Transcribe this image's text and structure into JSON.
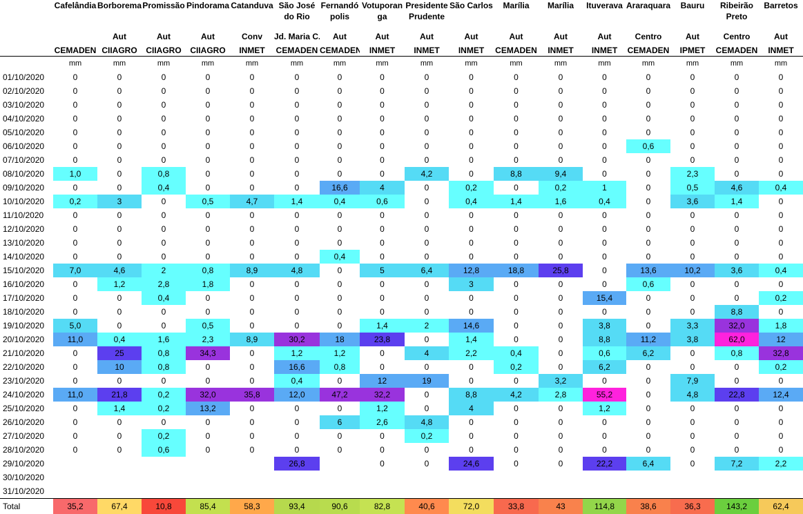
{
  "stations": [
    {
      "name": "Cafelândia",
      "type": "",
      "source": "CEMADEN",
      "unit": "mm"
    },
    {
      "name": "Borborema",
      "type": "Aut",
      "source": "CIIAGRO",
      "unit": "mm"
    },
    {
      "name": "Promissão",
      "type": "Aut",
      "source": "CIIAGRO",
      "unit": "mm"
    },
    {
      "name": "Pindorama",
      "type": "Aut",
      "source": "CIIAGRO",
      "unit": "mm"
    },
    {
      "name": "Catanduva",
      "type": "Conv",
      "source": "INMET",
      "unit": "mm"
    },
    {
      "name": "São José do Rio",
      "type": "Jd. Maria C.",
      "source": "CEMADEN",
      "unit": "mm"
    },
    {
      "name": "Fernandó polis",
      "type": "Aut",
      "source": "CEMADEN",
      "unit": "mm"
    },
    {
      "name": "Votuporan ga",
      "type": "Aut",
      "source": "INMET",
      "unit": "mm"
    },
    {
      "name": "Presidente Prudente",
      "type": "Aut",
      "source": "INMET",
      "unit": "mm"
    },
    {
      "name": "São Carlos",
      "type": "Aut",
      "source": "INMET",
      "unit": "mm"
    },
    {
      "name": "Marília",
      "type": "Aut",
      "source": "CEMADEN",
      "unit": "mm"
    },
    {
      "name": "Marília",
      "type": "Aut",
      "source": "INMET",
      "unit": "mm"
    },
    {
      "name": "Ituverava",
      "type": "Aut",
      "source": "INMET",
      "unit": "mm"
    },
    {
      "name": "Araraquara",
      "type": "Centro",
      "source": "CEMADEN",
      "unit": "mm"
    },
    {
      "name": "Bauru",
      "type": "Aut",
      "source": "IPMET",
      "unit": "mm"
    },
    {
      "name": "Ribeirão Preto",
      "type": "Centro",
      "source": "CEMADEN",
      "unit": "mm"
    },
    {
      "name": "Barretos",
      "type": "Aut",
      "source": "INMET",
      "unit": "mm"
    }
  ],
  "rows": [
    {
      "date": "01/10/2020",
      "values": [
        "0",
        "0",
        "0",
        "0",
        "0",
        "0",
        "0",
        "0",
        "0",
        "0",
        "0",
        "0",
        "0",
        "0",
        "0",
        "0",
        "0"
      ]
    },
    {
      "date": "02/10/2020",
      "values": [
        "0",
        "0",
        "0",
        "0",
        "0",
        "0",
        "0",
        "0",
        "0",
        "0",
        "0",
        "0",
        "0",
        "0",
        "0",
        "0",
        "0"
      ]
    },
    {
      "date": "03/10/2020",
      "values": [
        "0",
        "0",
        "0",
        "0",
        "0",
        "0",
        "0",
        "0",
        "0",
        "0",
        "0",
        "0",
        "0",
        "0",
        "0",
        "0",
        "0"
      ]
    },
    {
      "date": "04/10/2020",
      "values": [
        "0",
        "0",
        "0",
        "0",
        "0",
        "0",
        "0",
        "0",
        "0",
        "0",
        "0",
        "0",
        "0",
        "0",
        "0",
        "0",
        "0"
      ]
    },
    {
      "date": "05/10/2020",
      "values": [
        "0",
        "0",
        "0",
        "0",
        "0",
        "0",
        "0",
        "0",
        "0",
        "0",
        "0",
        "0",
        "0",
        "0",
        "0",
        "0",
        "0"
      ]
    },
    {
      "date": "06/10/2020",
      "values": [
        "0",
        "0",
        "0",
        "0",
        "0",
        "0",
        "0",
        "0",
        "0",
        "0",
        "0",
        "0",
        "0",
        "0,6",
        "0",
        "0",
        "0"
      ]
    },
    {
      "date": "07/10/2020",
      "values": [
        "0",
        "0",
        "0",
        "0",
        "0",
        "0",
        "0",
        "0",
        "0",
        "0",
        "0",
        "0",
        "0",
        "0",
        "0",
        "0",
        "0"
      ]
    },
    {
      "date": "08/10/2020",
      "values": [
        "1,0",
        "0",
        "0,8",
        "0",
        "0",
        "0",
        "0",
        "0",
        "4,2",
        "0",
        "8,8",
        "9,4",
        "0",
        "0",
        "2,3",
        "0",
        "0"
      ]
    },
    {
      "date": "09/10/2020",
      "values": [
        "0",
        "0",
        "0,4",
        "0",
        "0",
        "0",
        "16,6",
        "4",
        "0",
        "0,2",
        "0",
        "0,2",
        "1",
        "0",
        "0,5",
        "4,6",
        "0,4"
      ]
    },
    {
      "date": "10/10/2020",
      "values": [
        "0,2",
        "3",
        "0",
        "0,5",
        "4,7",
        "1,4",
        "0,4",
        "0,6",
        "0",
        "0,4",
        "1,4",
        "1,6",
        "0,4",
        "0",
        "3,6",
        "1,4",
        "0"
      ]
    },
    {
      "date": "11/10/2020",
      "values": [
        "0",
        "0",
        "0",
        "0",
        "0",
        "0",
        "0",
        "0",
        "0",
        "0",
        "0",
        "0",
        "0",
        "0",
        "0",
        "0",
        "0"
      ]
    },
    {
      "date": "12/10/2020",
      "values": [
        "0",
        "0",
        "0",
        "0",
        "0",
        "0",
        "0",
        "0",
        "0",
        "0",
        "0",
        "0",
        "0",
        "0",
        "0",
        "0",
        "0"
      ]
    },
    {
      "date": "13/10/2020",
      "values": [
        "0",
        "0",
        "0",
        "0",
        "0",
        "0",
        "0",
        "0",
        "0",
        "0",
        "0",
        "0",
        "0",
        "0",
        "0",
        "0",
        "0"
      ]
    },
    {
      "date": "14/10/2020",
      "values": [
        "0",
        "0",
        "0",
        "0",
        "0",
        "0",
        "0,4",
        "0",
        "0",
        "0",
        "0",
        "0",
        "0",
        "0",
        "0",
        "0",
        "0"
      ]
    },
    {
      "date": "15/10/2020",
      "values": [
        "7,0",
        "4,6",
        "2",
        "0,8",
        "8,9",
        "4,8",
        "0",
        "5",
        "6,4",
        "12,8",
        "18,8",
        "25,8",
        "0",
        "13,6",
        "10,2",
        "3,6",
        "0,4"
      ]
    },
    {
      "date": "16/10/2020",
      "values": [
        "0",
        "1,2",
        "2,8",
        "1,8",
        "0",
        "0",
        "0",
        "0",
        "0",
        "3",
        "0",
        "0",
        "0",
        "0,6",
        "0",
        "0",
        "0"
      ]
    },
    {
      "date": "17/10/2020",
      "values": [
        "0",
        "0",
        "0,4",
        "0",
        "0",
        "0",
        "0",
        "0",
        "0",
        "0",
        "0",
        "0",
        "15,4",
        "0",
        "0",
        "0",
        "0,2"
      ]
    },
    {
      "date": "18/10/2020",
      "values": [
        "0",
        "0",
        "0",
        "0",
        "0",
        "0",
        "0",
        "0",
        "0",
        "0",
        "0",
        "0",
        "0",
        "0",
        "0",
        "8,8",
        "0"
      ]
    },
    {
      "date": "19/10/2020",
      "values": [
        "5,0",
        "0",
        "0",
        "0,5",
        "0",
        "0",
        "0",
        "1,4",
        "2",
        "14,6",
        "0",
        "0",
        "3,8",
        "0",
        "3,3",
        "32,0",
        "1,8"
      ]
    },
    {
      "date": "20/10/2020",
      "values": [
        "11,0",
        "0,4",
        "1,6",
        "2,3",
        "8,9",
        "30,2",
        "18",
        "23,8",
        "0",
        "1,4",
        "0",
        "0",
        "8,8",
        "11,2",
        "3,8",
        "62,0",
        "12"
      ]
    },
    {
      "date": "21/10/2020",
      "values": [
        "0",
        "25",
        "0,8",
        "34,3",
        "0",
        "1,2",
        "1,2",
        "0",
        "4",
        "2,2",
        "0,4",
        "0",
        "0,6",
        "6,2",
        "0",
        "0,8",
        "32,8"
      ]
    },
    {
      "date": "22/10/2020",
      "values": [
        "0",
        "10",
        "0,8",
        "0",
        "0",
        "16,6",
        "0,8",
        "0",
        "0",
        "0",
        "0,2",
        "0",
        "6,2",
        "0",
        "0",
        "0",
        "0,2"
      ]
    },
    {
      "date": "23/10/2020",
      "values": [
        "0",
        "0",
        "0",
        "0",
        "0",
        "0,4",
        "0",
        "12",
        "19",
        "0",
        "0",
        "3,2",
        "0",
        "0",
        "7,9",
        "0",
        "0"
      ]
    },
    {
      "date": "24/10/2020",
      "values": [
        "11,0",
        "21,8",
        "0,2",
        "32,0",
        "35,8",
        "12,0",
        "47,2",
        "32,2",
        "0",
        "8,8",
        "4,2",
        "2,8",
        "55,2",
        "0",
        "4,8",
        "22,8",
        "12,4"
      ]
    },
    {
      "date": "25/10/2020",
      "values": [
        "0",
        "1,4",
        "0,2",
        "13,2",
        "0",
        "0",
        "0",
        "1,2",
        "0",
        "4",
        "0",
        "0",
        "1,2",
        "0",
        "0",
        "0",
        "0"
      ]
    },
    {
      "date": "26/10/2020",
      "values": [
        "0",
        "0",
        "0",
        "0",
        "0",
        "0",
        "6",
        "2,6",
        "4,8",
        "0",
        "0",
        "0",
        "0",
        "0",
        "0",
        "0",
        "0"
      ]
    },
    {
      "date": "27/10/2020",
      "values": [
        "0",
        "0",
        "0,2",
        "0",
        "0",
        "0",
        "0",
        "0",
        "0,2",
        "0",
        "0",
        "0",
        "0",
        "0",
        "0",
        "0",
        "0"
      ]
    },
    {
      "date": "28/10/2020",
      "values": [
        "0",
        "0",
        "0,6",
        "0",
        "0",
        "0",
        "0",
        "0",
        "0",
        "0",
        "0",
        "0",
        "0",
        "0",
        "0",
        "0",
        "0"
      ]
    },
    {
      "date": "29/10/2020",
      "values": [
        "",
        "",
        "",
        "",
        "",
        "26,8",
        "",
        "0",
        "0",
        "24,6",
        "0",
        "0",
        "22,2",
        "6,4",
        "0",
        "7,2",
        "2,2"
      ]
    },
    {
      "date": "30/10/2020",
      "values": [
        "",
        "",
        "",
        "",
        "",
        "",
        "",
        "",
        "",
        "",
        "",
        "",
        "",
        "",
        "",
        "",
        ""
      ]
    },
    {
      "date": "31/10/2020",
      "values": [
        "",
        "",
        "",
        "",
        "",
        "",
        "",
        "",
        "",
        "",
        "",
        "",
        "",
        "",
        "",
        "",
        ""
      ]
    }
  ],
  "totals": {
    "label": "Total",
    "values": [
      "35,2",
      "67,4",
      "10,8",
      "85,4",
      "58,3",
      "93,4",
      "90,6",
      "82,8",
      "40,6",
      "72,0",
      "33,8",
      "43",
      "114,8",
      "38,6",
      "36,3",
      "143,2",
      "62,4"
    ],
    "colors": [
      "#f8696b",
      "#ffd966",
      "#f8483a",
      "#c3e04f",
      "#ffa84a",
      "#b6d94d",
      "#b8dc4e",
      "#c5e252",
      "#ff8a4e",
      "#f3dd5e",
      "#f8694e",
      "#f9824c",
      "#93d64a",
      "#f9814c",
      "#f86c4e",
      "#6bcf3e",
      "#f6c95a"
    ]
  },
  "colors": {
    "c1": "#66ffff",
    "c2": "#55dbf5",
    "c3": "#5aaaf5",
    "c4": "#5c3fef",
    "c5": "#9933dd",
    "c6": "#ff22dd"
  }
}
